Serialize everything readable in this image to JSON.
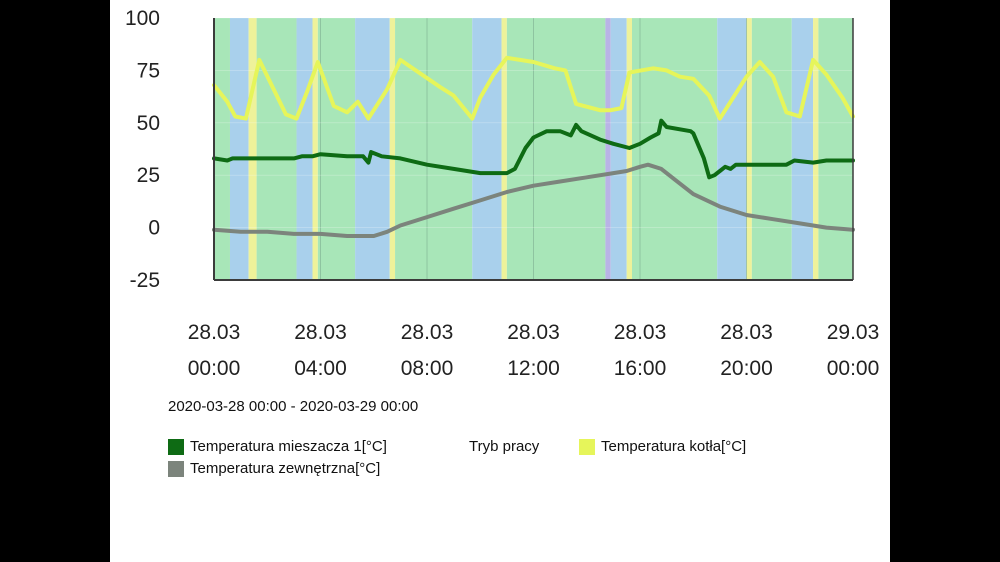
{
  "chart_data": {
    "type": "line",
    "title": "",
    "date_range": "2020-03-28 00:00 - 2020-03-29 00:00",
    "xlabel": "",
    "ylabel": "",
    "ylim": [
      -25,
      100
    ],
    "yticks": [
      100,
      75,
      50,
      25,
      0,
      -25
    ],
    "xlim_hours": [
      0,
      24
    ],
    "xticks": [
      {
        "hour": 0,
        "date": "28.03",
        "time": "00:00"
      },
      {
        "hour": 4,
        "date": "28.03",
        "time": "04:00"
      },
      {
        "hour": 8,
        "date": "28.03",
        "time": "08:00"
      },
      {
        "hour": 12,
        "date": "28.03",
        "time": "12:00"
      },
      {
        "hour": 16,
        "date": "28.03",
        "time": "16:00"
      },
      {
        "hour": 20,
        "date": "28.03",
        "time": "20:00"
      },
      {
        "hour": 24,
        "date": "29.03",
        "time": "00:00"
      }
    ],
    "mode_bands": {
      "name": "Tryb pracy",
      "colors": {
        "heat": "#a8e6b8",
        "idle": "#a9d0ec",
        "start": "#eef29a",
        "pause": "#b9b3e6"
      },
      "segments": [
        {
          "from": 0,
          "to": 0.6,
          "mode": "heat"
        },
        {
          "from": 0.6,
          "to": 1.3,
          "mode": "idle"
        },
        {
          "from": 1.3,
          "to": 1.6,
          "mode": "start"
        },
        {
          "from": 1.6,
          "to": 3.1,
          "mode": "heat"
        },
        {
          "from": 3.1,
          "to": 3.7,
          "mode": "idle"
        },
        {
          "from": 3.7,
          "to": 3.9,
          "mode": "start"
        },
        {
          "from": 3.9,
          "to": 5.3,
          "mode": "heat"
        },
        {
          "from": 5.3,
          "to": 6.6,
          "mode": "idle"
        },
        {
          "from": 6.6,
          "to": 6.8,
          "mode": "start"
        },
        {
          "from": 6.8,
          "to": 9.7,
          "mode": "heat"
        },
        {
          "from": 9.7,
          "to": 10.8,
          "mode": "idle"
        },
        {
          "from": 10.8,
          "to": 11.0,
          "mode": "start"
        },
        {
          "from": 11.0,
          "to": 14.7,
          "mode": "heat"
        },
        {
          "from": 14.7,
          "to": 14.9,
          "mode": "pause"
        },
        {
          "from": 14.9,
          "to": 15.5,
          "mode": "idle"
        },
        {
          "from": 15.5,
          "to": 15.7,
          "mode": "start"
        },
        {
          "from": 15.7,
          "to": 18.9,
          "mode": "heat"
        },
        {
          "from": 18.9,
          "to": 20.0,
          "mode": "idle"
        },
        {
          "from": 20.0,
          "to": 20.2,
          "mode": "start"
        },
        {
          "from": 20.2,
          "to": 21.7,
          "mode": "heat"
        },
        {
          "from": 21.7,
          "to": 22.5,
          "mode": "idle"
        },
        {
          "from": 22.5,
          "to": 22.7,
          "mode": "start"
        },
        {
          "from": 22.7,
          "to": 24,
          "mode": "heat"
        }
      ]
    },
    "series": [
      {
        "name": "Temperatura mieszacza 1[°C]",
        "color": "#0e6b14",
        "x": [
          0,
          0.5,
          0.7,
          1,
          2,
          3,
          3.3,
          3.7,
          4,
          5,
          5.6,
          5.8,
          5.9,
          6.3,
          7,
          8,
          9,
          10,
          11,
          11.3,
          11.7,
          12,
          12.5,
          13,
          13.4,
          13.6,
          13.8,
          14.5,
          15,
          15.6,
          16,
          16.4,
          16.7,
          16.8,
          17,
          17.9,
          18,
          18.4,
          18.6,
          18.8,
          19,
          19.2,
          19.4,
          19.6,
          20,
          21,
          21.5,
          21.8,
          22.5,
          23,
          24
        ],
        "values": [
          33,
          32,
          33,
          33,
          33,
          33,
          34,
          34,
          35,
          34,
          34,
          31,
          36,
          34,
          33,
          30,
          28,
          26,
          26,
          28,
          38,
          43,
          46,
          46,
          44,
          49,
          46,
          42,
          40,
          38,
          40,
          43,
          45,
          51,
          48,
          46,
          45,
          33,
          24,
          25,
          27,
          29,
          28,
          30,
          30,
          30,
          30,
          32,
          31,
          32,
          32
        ]
      },
      {
        "name": "Temperatura kotła[°C]",
        "color": "#e6f55a",
        "x": [
          0,
          0.5,
          0.8,
          1.2,
          1.7,
          2.7,
          3.1,
          3.5,
          3.9,
          4.5,
          5,
          5.4,
          5.8,
          6.5,
          7,
          8.5,
          9,
          9.7,
          10,
          10.5,
          11,
          12,
          12.8,
          13.2,
          13.6,
          14.5,
          14.9,
          15.3,
          15.6,
          16.5,
          17,
          17.5,
          18,
          18.6,
          19,
          19.5,
          20,
          20.5,
          21,
          21.5,
          22,
          22.5,
          23,
          23.6,
          24
        ],
        "values": [
          68,
          60,
          53,
          52,
          80,
          54,
          52,
          65,
          79,
          58,
          55,
          60,
          52,
          66,
          80,
          67,
          63,
          52,
          62,
          73,
          81,
          79,
          76,
          75,
          59,
          56,
          56,
          57,
          74,
          76,
          75,
          72,
          71,
          63,
          52,
          62,
          72,
          79,
          72,
          55,
          53,
          80,
          73,
          62,
          53
        ]
      },
      {
        "name": "Temperatura zewnętrzna[°C]",
        "color": "#7c847c",
        "x": [
          0,
          1,
          2,
          3,
          4,
          5,
          5.5,
          6,
          6.5,
          7,
          8,
          9,
          10,
          11,
          12,
          13,
          14,
          15,
          15.5,
          16,
          16.3,
          16.8,
          17.3,
          18,
          19,
          20,
          21,
          22,
          23,
          24
        ],
        "values": [
          -1,
          -2,
          -2,
          -3,
          -3,
          -4,
          -4,
          -4,
          -2,
          1,
          5,
          9,
          13,
          17,
          20,
          22,
          24,
          26,
          27,
          29,
          30,
          28,
          23,
          16,
          10,
          6,
          4,
          2,
          0,
          -1
        ]
      }
    ],
    "legend": [
      {
        "label": "Temperatura mieszacza 1[°C]",
        "color": "#0e6b14"
      },
      {
        "label": "Tryb pracy",
        "color": ""
      },
      {
        "label": "Temperatura kotła[°C]",
        "color": "#e6f55a"
      },
      {
        "label": "Temperatura zewnętrzna[°C]",
        "color": "#7c847c"
      }
    ]
  }
}
